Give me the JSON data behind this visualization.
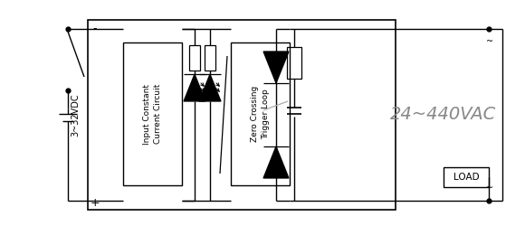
{
  "bg_color": "#ffffff",
  "lc": "#000000",
  "gray": "#aaaaaa",
  "vac_color": "#888888",
  "fig_w": 5.8,
  "fig_h": 2.5,
  "dpi": 100,
  "icc_label": "Input Constant\nCurrent Circuit",
  "zcl_label": "Zero Crossing\nTrigger Loop",
  "vdc_label": "3~32VDC",
  "vac_label": "24~440VAC",
  "load_label": "LOAD",
  "minus_label": "-",
  "plus_label": "+"
}
